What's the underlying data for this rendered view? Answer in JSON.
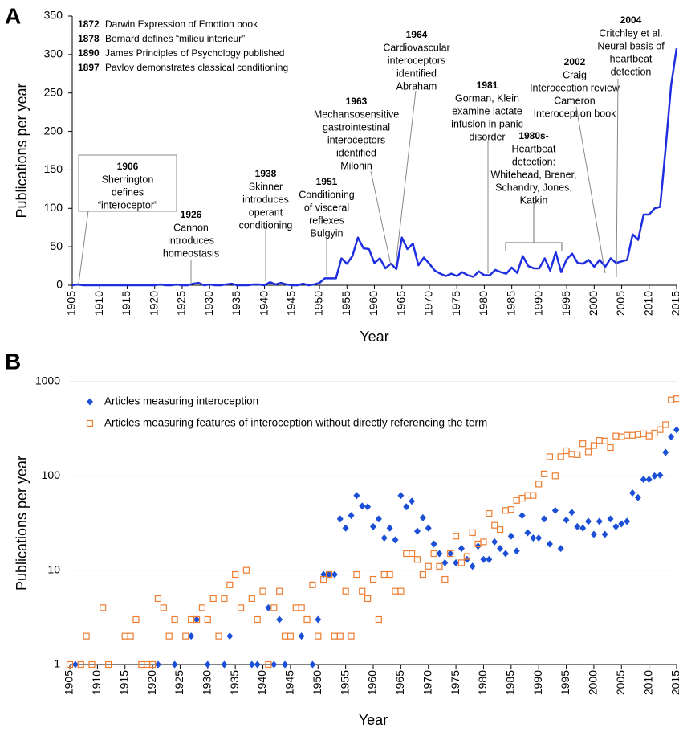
{
  "chart_data": [
    {
      "type": "line",
      "panel_label": "A",
      "y_label": "Publications per year",
      "x_label": "Year",
      "color": "#1f2fe0",
      "xlim": [
        1905,
        2015
      ],
      "ylim": [
        0,
        350
      ],
      "xticks": [
        1905,
        1910,
        1915,
        1920,
        1925,
        1930,
        1935,
        1940,
        1945,
        1950,
        1955,
        1960,
        1965,
        1970,
        1975,
        1980,
        1985,
        1990,
        1995,
        2000,
        2005,
        2010,
        2015
      ],
      "yticks": [
        0,
        50,
        100,
        150,
        200,
        250,
        300,
        350
      ],
      "x": [
        1905,
        1906,
        1907,
        1908,
        1909,
        1910,
        1911,
        1912,
        1913,
        1914,
        1915,
        1916,
        1917,
        1918,
        1919,
        1920,
        1921,
        1922,
        1923,
        1924,
        1925,
        1926,
        1927,
        1928,
        1929,
        1930,
        1931,
        1932,
        1933,
        1934,
        1935,
        1936,
        1937,
        1938,
        1939,
        1940,
        1941,
        1942,
        1943,
        1944,
        1945,
        1946,
        1947,
        1948,
        1949,
        1950,
        1951,
        1952,
        1953,
        1954,
        1955,
        1956,
        1957,
        1958,
        1959,
        1960,
        1961,
        1962,
        1963,
        1964,
        1965,
        1966,
        1967,
        1968,
        1969,
        1970,
        1971,
        1972,
        1973,
        1974,
        1975,
        1976,
        1977,
        1978,
        1979,
        1980,
        1981,
        1982,
        1983,
        1984,
        1985,
        1986,
        1987,
        1988,
        1989,
        1990,
        1991,
        1992,
        1993,
        1994,
        1995,
        1996,
        1997,
        1998,
        1999,
        2000,
        2001,
        2002,
        2003,
        2004,
        2005,
        2006,
        2007,
        2008,
        2009,
        2010,
        2011,
        2012,
        2013,
        2014,
        2015
      ],
      "values": [
        0,
        1,
        0,
        0,
        0,
        0,
        0,
        0,
        0,
        0,
        0,
        0,
        0,
        0,
        0,
        0,
        1,
        0,
        0,
        1,
        0,
        0,
        2,
        3,
        0,
        1,
        0,
        0,
        1,
        2,
        0,
        0,
        0,
        1,
        1,
        0,
        4,
        1,
        3,
        1,
        0,
        0,
        2,
        0,
        1,
        3,
        9,
        9,
        9,
        35,
        28,
        38,
        62,
        48,
        47,
        29,
        35,
        22,
        28,
        21,
        62,
        47,
        54,
        26,
        36,
        28,
        19,
        15,
        12,
        15,
        12,
        17,
        13,
        11,
        18,
        13,
        13,
        20,
        17,
        15,
        23,
        16,
        38,
        25,
        22,
        22,
        35,
        19,
        43,
        17,
        34,
        41,
        29,
        28,
        33,
        24,
        33,
        24,
        35,
        29,
        31,
        33,
        66,
        59,
        92,
        92,
        100,
        102,
        178,
        260,
        308
      ],
      "timeline": [
        {
          "year": "1872",
          "text": "Darwin Expression of Emotion book"
        },
        {
          "year": "1878",
          "text": "Bernard defines “milieu interieur”"
        },
        {
          "year": "1890",
          "text": "James Principles of Psychology published"
        },
        {
          "year": "1897",
          "text": "Pavlov demonstrates classical conditioning"
        }
      ],
      "annotations": [
        {
          "title": "1906",
          "lines": [
            "Sherrington",
            "defines",
            "“interoceptor”"
          ]
        },
        {
          "title": "1926",
          "lines": [
            "Cannon",
            "introduces",
            "homeostasis"
          ]
        },
        {
          "title": "1938",
          "lines": [
            "Skinner",
            "introduces",
            "operant",
            "conditioning"
          ]
        },
        {
          "title": "1951",
          "lines": [
            "Conditioning",
            "of visceral",
            "reflexes",
            "Bulgyin"
          ]
        },
        {
          "title": "1963",
          "lines": [
            "Mechansosensitive",
            "gastrointestinal",
            "interoceptors",
            "identified",
            "Milohin"
          ]
        },
        {
          "title": "1964",
          "lines": [
            "Cardiovascular",
            "interoceptors",
            "identified",
            "Abraham"
          ]
        },
        {
          "title": "1981",
          "lines": [
            "Gorman, Klein",
            "examine lactate",
            "infusion in panic",
            "disorder"
          ]
        },
        {
          "title": "1980s-",
          "lines": [
            "Heartbeat",
            "detection:",
            "Whitehead, Brener,",
            "Schandry, Jones,",
            "Katkin"
          ]
        },
        {
          "title": "2002",
          "lines": [
            "Craig",
            "Interoception review",
            "Cameron",
            "Interoception book"
          ]
        },
        {
          "title": "2004",
          "lines": [
            "Critchley et al.",
            "Neural basis of",
            "heartbeat",
            "detection"
          ]
        }
      ]
    },
    {
      "type": "scatter",
      "panel_label": "B",
      "y_label": "Publications per year",
      "x_label": "Year",
      "log": true,
      "grid": true,
      "xlim": [
        1905,
        2015
      ],
      "ylim": [
        1,
        1000
      ],
      "xticks": [
        1905,
        1910,
        1915,
        1920,
        1925,
        1930,
        1935,
        1940,
        1945,
        1950,
        1955,
        1960,
        1965,
        1970,
        1975,
        1980,
        1985,
        1990,
        1995,
        2000,
        2005,
        2010,
        2015
      ],
      "yticks": [
        1,
        10,
        100,
        1000
      ],
      "series": [
        {
          "name": "Articles measuring interoception",
          "color": "#1a4fd6",
          "marker": "diamond",
          "x": [
            1906,
            1921,
            1924,
            1927,
            1928,
            1930,
            1933,
            1934,
            1938,
            1939,
            1941,
            1942,
            1943,
            1944,
            1947,
            1949,
            1950,
            1951,
            1952,
            1953,
            1954,
            1955,
            1956,
            1957,
            1958,
            1959,
            1960,
            1961,
            1962,
            1963,
            1964,
            1965,
            1966,
            1967,
            1968,
            1969,
            1970,
            1971,
            1972,
            1973,
            1974,
            1975,
            1976,
            1977,
            1978,
            1979,
            1980,
            1981,
            1982,
            1983,
            1984,
            1985,
            1986,
            1987,
            1988,
            1989,
            1990,
            1991,
            1992,
            1993,
            1994,
            1995,
            1996,
            1997,
            1998,
            1999,
            2000,
            2001,
            2002,
            2003,
            2004,
            2005,
            2006,
            2007,
            2008,
            2009,
            2010,
            2011,
            2012,
            2013,
            2014,
            2015
          ],
          "values": [
            1,
            1,
            1,
            2,
            3,
            1,
            1,
            2,
            1,
            1,
            4,
            1,
            3,
            1,
            2,
            1,
            3,
            9,
            9,
            9,
            35,
            28,
            38,
            62,
            48,
            47,
            29,
            35,
            22,
            28,
            21,
            62,
            47,
            54,
            26,
            36,
            28,
            19,
            15,
            12,
            15,
            12,
            17,
            13,
            11,
            18,
            13,
            13,
            20,
            17,
            15,
            23,
            16,
            38,
            25,
            22,
            22,
            35,
            19,
            43,
            17,
            34,
            41,
            29,
            28,
            33,
            24,
            33,
            24,
            35,
            29,
            31,
            33,
            66,
            59,
            92,
            92,
            100,
            102,
            178,
            260,
            308
          ]
        },
        {
          "name": "Articles measuring features of interoception without directly referencing the term",
          "color": "#ed7d31",
          "marker": "square",
          "x": [
            1905,
            1907,
            1908,
            1909,
            1911,
            1912,
            1915,
            1916,
            1917,
            1918,
            1919,
            1920,
            1921,
            1922,
            1923,
            1924,
            1926,
            1927,
            1928,
            1929,
            1930,
            1931,
            1932,
            1933,
            1934,
            1935,
            1936,
            1937,
            1938,
            1939,
            1940,
            1941,
            1942,
            1943,
            1944,
            1945,
            1946,
            1947,
            1948,
            1949,
            1950,
            1951,
            1952,
            1953,
            1954,
            1955,
            1956,
            1957,
            1958,
            1959,
            1960,
            1961,
            1962,
            1963,
            1964,
            1965,
            1966,
            1967,
            1968,
            1969,
            1970,
            1971,
            1972,
            1973,
            1974,
            1975,
            1976,
            1977,
            1978,
            1979,
            1980,
            1981,
            1982,
            1983,
            1984,
            1985,
            1986,
            1987,
            1988,
            1989,
            1990,
            1991,
            1992,
            1993,
            1994,
            1995,
            1996,
            1997,
            1998,
            1999,
            2000,
            2001,
            2002,
            2003,
            2004,
            2005,
            2006,
            2007,
            2008,
            2009,
            2010,
            2011,
            2012,
            2013,
            2014,
            2015
          ],
          "values": [
            1,
            1,
            2,
            1,
            4,
            1,
            2,
            2,
            3,
            1,
            1,
            1,
            5,
            4,
            2,
            3,
            2,
            3,
            3,
            4,
            3,
            5,
            2,
            5,
            7,
            9,
            4,
            10,
            5,
            3,
            6,
            1,
            4,
            6,
            2,
            2,
            4,
            4,
            3,
            7,
            2,
            8,
            9,
            2,
            2,
            6,
            2,
            9,
            6,
            5,
            8,
            3,
            9,
            9,
            6,
            6,
            15,
            15,
            13,
            9,
            11,
            15,
            11,
            8,
            15,
            23,
            12,
            14,
            25,
            19,
            20,
            40,
            30,
            27,
            43,
            44,
            55,
            58,
            62,
            62,
            82,
            105,
            160,
            100,
            160,
            185,
            170,
            168,
            220,
            180,
            210,
            238,
            235,
            200,
            265,
            260,
            270,
            270,
            275,
            280,
            265,
            285,
            310,
            350,
            640,
            660
          ]
        }
      ]
    }
  ]
}
